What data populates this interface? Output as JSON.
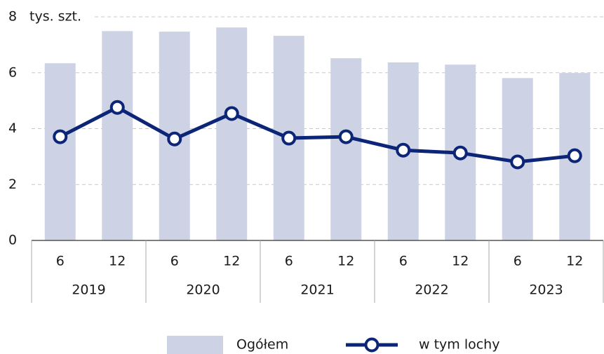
{
  "chart_data": {
    "type": "bar_line",
    "y_label": "tys. szt.",
    "categories": [
      "6",
      "12",
      "6",
      "12",
      "6",
      "12",
      "6",
      "12",
      "6",
      "12"
    ],
    "groups": [
      "2019",
      "2020",
      "2021",
      "2022",
      "2023"
    ],
    "series": [
      {
        "name": "Ogółem",
        "type": "bar",
        "color": "#cdd3e5",
        "values": [
          6.34,
          7.49,
          7.47,
          7.62,
          7.32,
          6.52,
          6.37,
          6.29,
          5.81,
          5.99
        ]
      },
      {
        "name": "w tym lochy",
        "type": "line",
        "color": "#0c2577",
        "values": [
          3.71,
          4.76,
          3.63,
          4.54,
          3.66,
          3.71,
          3.23,
          3.13,
          2.81,
          3.03
        ]
      }
    ],
    "ylim": [
      0,
      8
    ],
    "yticks": [
      0,
      2,
      4,
      6,
      8
    ],
    "grid": true
  }
}
